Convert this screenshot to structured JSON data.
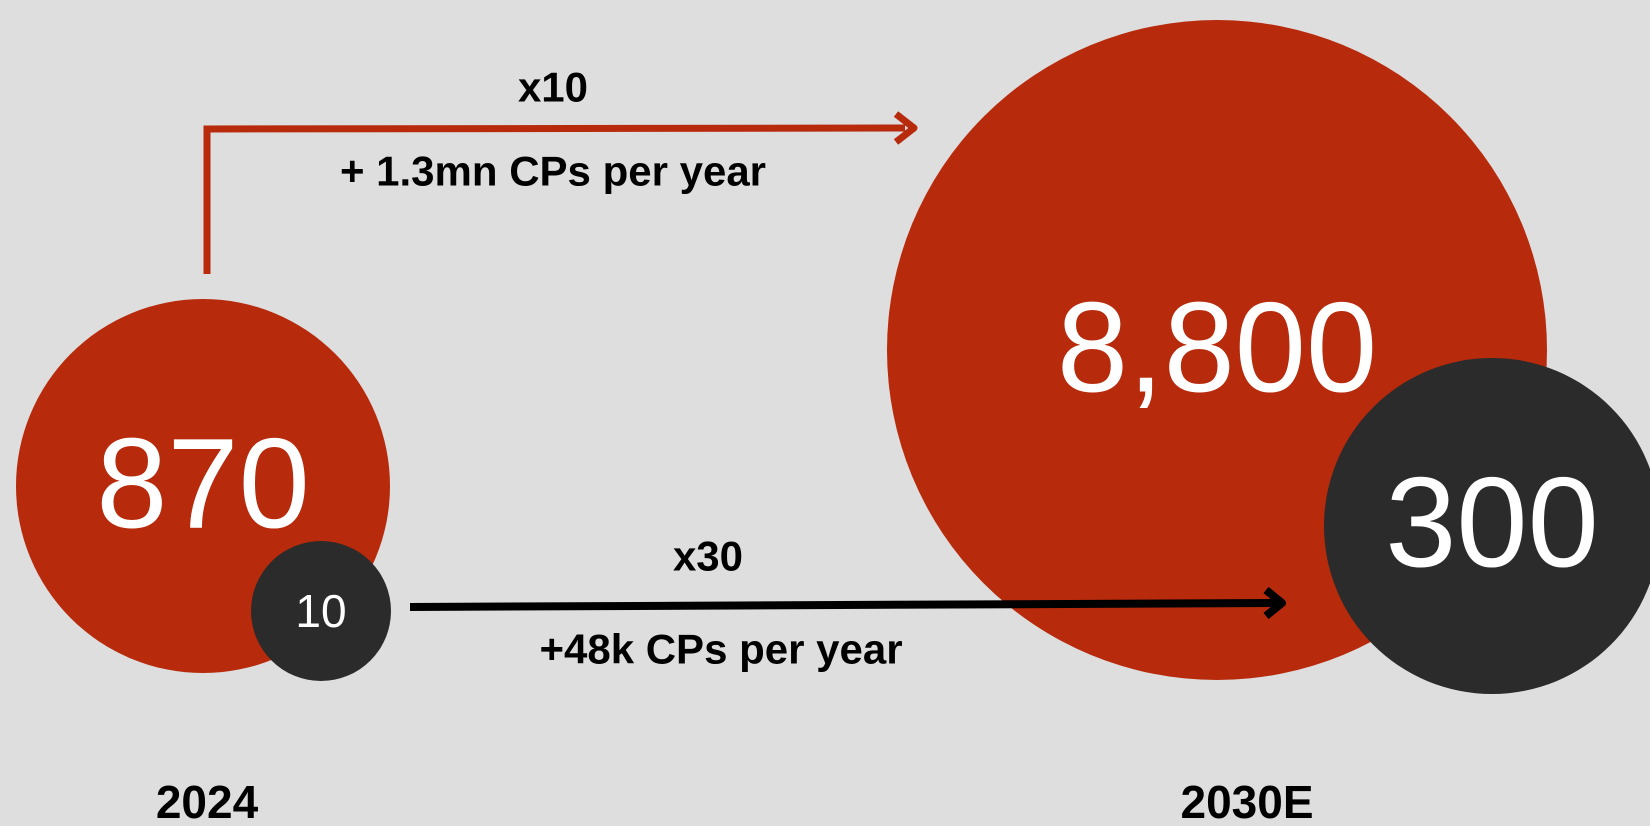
{
  "periods": [
    {
      "label": "2024",
      "main": "870",
      "secondary": "10"
    },
    {
      "label": "2030E",
      "main": "8,800",
      "secondary": "300"
    }
  ],
  "growth": [
    {
      "factor": "x10",
      "note": "+ 1.3mn CPs per year"
    },
    {
      "factor": "x30",
      "note": "+48k CPs per year"
    }
  ]
}
